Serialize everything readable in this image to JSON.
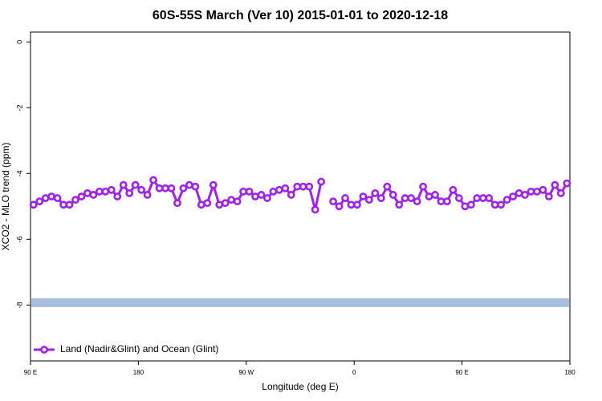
{
  "chart_data": {
    "type": "line",
    "title": "60S-55S March (Ver 10)   2015-01-01 to 2020-12-18",
    "x_label": "Longitude (deg E)",
    "y_label": "XCO2 - MLO trend (ppm)",
    "xlim": [
      90,
      540
    ],
    "ylim": [
      -9.7,
      0.3
    ],
    "xticks": [
      {
        "value": 90,
        "label": "90 E"
      },
      180,
      {
        "value": 270,
        "label": "90 W"
      },
      {
        "value": 360,
        "label": "0"
      },
      {
        "value": 450,
        "label": "90 E"
      },
      {
        "value": 540,
        "label": "180"
      }
    ],
    "yticks": [
      0,
      -2,
      -4,
      -6,
      -8
    ],
    "legend": "bottom-left",
    "band": {
      "value": -7.93,
      "color": "#a8bfe0"
    },
    "x": [
      92.5,
      97.5,
      102.5,
      107.5,
      112.5,
      117.5,
      122.5,
      127.5,
      132.5,
      137.5,
      142.5,
      147.5,
      152.5,
      157.5,
      162.5,
      167.5,
      172.5,
      177.5,
      182.5,
      187.5,
      192.5,
      197.5,
      202.5,
      207.5,
      212.5,
      217.5,
      222.5,
      227.5,
      232.5,
      237.5,
      242.5,
      247.5,
      252.5,
      257.5,
      262.5,
      267.5,
      272.5,
      277.5,
      282.5,
      287.5,
      292.5,
      297.5,
      302.5,
      307.5,
      312.5,
      317.5,
      322.5,
      327.5,
      332.5,
      337.5,
      342.5,
      347.5,
      352.5,
      357.5,
      362.5,
      367.5,
      372.5,
      377.5,
      382.5,
      387.5,
      392.5,
      397.5,
      402.5,
      407.5,
      412.5,
      417.5,
      422.5,
      427.5,
      432.5,
      437.5,
      442.5,
      447.5,
      452.5,
      457.5,
      462.5,
      467.5,
      472.5,
      477.5,
      482.5,
      487.5,
      492.5,
      497.5,
      502.5,
      507.5,
      512.5,
      517.5,
      522.5,
      527.5,
      532.5,
      537.5
    ],
    "series": [
      {
        "name": "Land (Nadir&Glint) and Ocean (Glint)",
        "color": "#a020f0",
        "values": [
          -4.95,
          -4.85,
          -4.75,
          -4.7,
          -4.75,
          -4.95,
          -4.95,
          -4.8,
          -4.7,
          -4.6,
          -4.65,
          -4.55,
          -4.55,
          -4.5,
          -4.7,
          -4.35,
          -4.6,
          -4.35,
          -4.5,
          -4.65,
          -4.2,
          -4.45,
          -4.45,
          -4.45,
          -4.9,
          -4.45,
          -4.35,
          -4.4,
          -4.95,
          -4.9,
          -4.35,
          -4.95,
          -4.9,
          -4.8,
          -4.85,
          -4.55,
          -4.55,
          -4.7,
          -4.65,
          -4.75,
          -4.55,
          -4.5,
          -4.45,
          -4.65,
          -4.4,
          -4.4,
          -4.4,
          -5.1,
          -4.25,
          null,
          -4.85,
          -5.0,
          -4.75,
          -4.95,
          -4.95,
          -4.7,
          -4.8,
          -4.6,
          -4.75,
          -4.4,
          -4.65,
          -4.95,
          -4.75,
          -4.75,
          -4.85,
          -4.4,
          -4.7,
          -4.65,
          -4.85,
          -4.85,
          -4.5,
          -4.75,
          -5.0,
          -4.95,
          -4.75,
          -4.75,
          -4.75,
          -4.95,
          -4.95,
          -4.8,
          -4.7,
          -4.6,
          -4.65,
          -4.55,
          -4.55,
          -4.5,
          -4.7,
          -4.35,
          -4.6,
          -4.3
        ]
      }
    ]
  }
}
